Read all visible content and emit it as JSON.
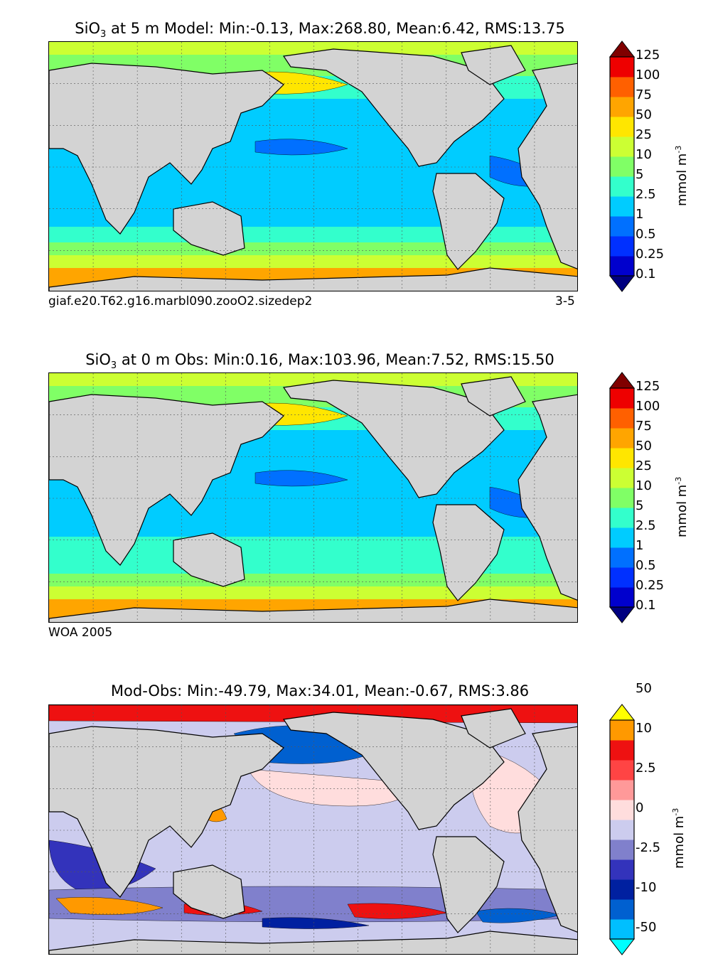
{
  "panels": [
    {
      "id": "model",
      "title": {
        "prefix": "SiO",
        "sub": "3",
        "text": "  at 5 m Model: Min:-0.13, Max:268.80, Mean:6.42, RMS:13.75"
      },
      "footer_left": "giaf.e20.T62.g16.marbl090.zooO2.sizedep2",
      "footer_right": "3-5"
    },
    {
      "id": "obs",
      "title": {
        "prefix": "SiO",
        "sub": "3",
        "text": "  at 0 m Obs: Min:0.16, Max:103.96, Mean:7.52, RMS:15.50"
      },
      "footer_left": "WOA 2005",
      "footer_right": ""
    },
    {
      "id": "diff",
      "title": {
        "prefix": "",
        "sub": "",
        "text": "Mod-Obs: Min:-49.79, Max:34.01, Mean:-0.67, RMS:3.86"
      },
      "footer_left": "",
      "footer_right": ""
    }
  ],
  "chart_data": [
    {
      "type": "heatmap",
      "title": "SiO3 at 5 m Model: Min:-0.13, Max:268.80, Mean:6.42, RMS:13.75",
      "stats": {
        "min": -0.13,
        "max": 268.8,
        "mean": 6.42,
        "rms": 13.75
      },
      "colorbar": {
        "units": "mmol m",
        "units_exp": "-3",
        "levels": [
          "0.1",
          "0.25",
          "0.5",
          "1",
          "2.5",
          "5",
          "10",
          "25",
          "50",
          "75",
          "100",
          "125"
        ],
        "colors": [
          "#000080",
          "#0000cd",
          "#0030ff",
          "#0070ff",
          "#00ccff",
          "#33ffcc",
          "#80ff66",
          "#ccff33",
          "#ffe600",
          "#ffa500",
          "#ff6000",
          "#ee0000",
          "#800000"
        ],
        "extend": "both"
      },
      "grid": true
    },
    {
      "type": "heatmap",
      "title": "SiO3 at 0 m Obs: Min:0.16, Max:103.96, Mean:7.52, RMS:15.50",
      "stats": {
        "min": 0.16,
        "max": 103.96,
        "mean": 7.52,
        "rms": 15.5
      },
      "colorbar": {
        "units": "mmol m",
        "units_exp": "-3",
        "levels": [
          "0.1",
          "0.25",
          "0.5",
          "1",
          "2.5",
          "5",
          "10",
          "25",
          "50",
          "75",
          "100",
          "125"
        ],
        "colors": [
          "#000080",
          "#0000cd",
          "#0030ff",
          "#0070ff",
          "#00ccff",
          "#33ffcc",
          "#80ff66",
          "#ccff33",
          "#ffe600",
          "#ffa500",
          "#ff6000",
          "#ee0000",
          "#800000"
        ],
        "extend": "both"
      },
      "grid": true
    },
    {
      "type": "heatmap",
      "title": "Mod-Obs: Min:-49.79, Max:34.01, Mean:-0.67, RMS:3.86",
      "stats": {
        "min": -49.79,
        "max": 34.01,
        "mean": -0.67,
        "rms": 3.86
      },
      "colorbar": {
        "units": "mmol m",
        "units_exp": "-3",
        "labels": [
          "-50",
          "-10",
          "-2.5",
          "0",
          "2.5",
          "10",
          "50"
        ],
        "colors": [
          "#00ffff",
          "#00bfff",
          "#0060d0",
          "#0020a0",
          "#3333bb",
          "#8080cc",
          "#ccccee",
          "#ffdddd",
          "#ff9999",
          "#ff4444",
          "#ee1111",
          "#ff9900",
          "#ffff00"
        ],
        "extend": "both"
      },
      "grid": true
    }
  ],
  "colors": {
    "land": "#d3d3d3",
    "coast": "#000000",
    "grid": "#555555"
  }
}
